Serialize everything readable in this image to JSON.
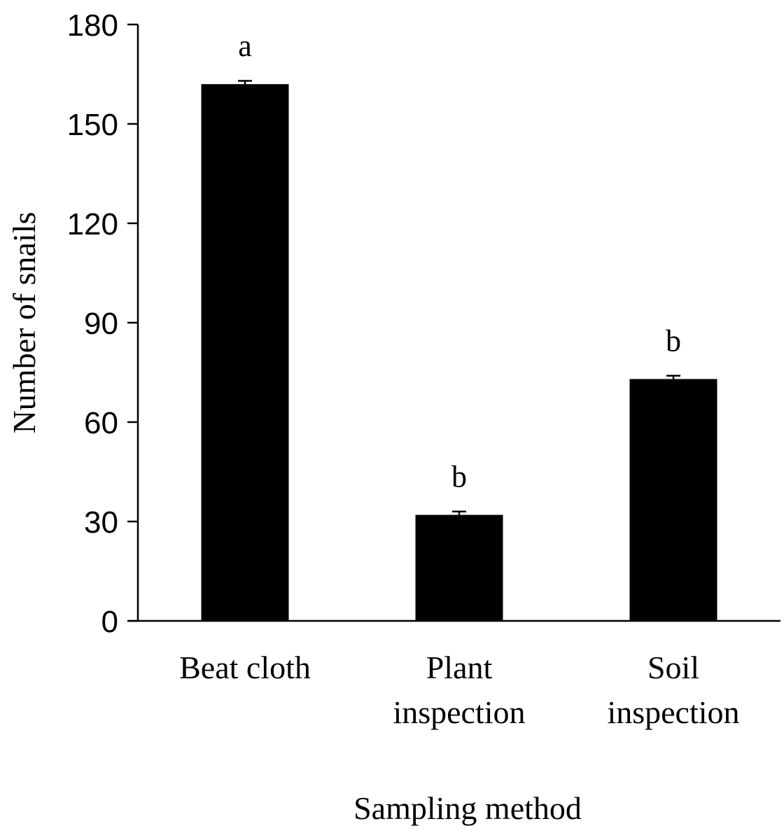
{
  "chart_data": {
    "type": "bar",
    "title": "",
    "xlabel": "Sampling method",
    "ylabel": "Number of snails",
    "ylim": [
      0,
      180
    ],
    "yticks": [
      0,
      30,
      60,
      90,
      120,
      150,
      180
    ],
    "categories": [
      [
        "Beat cloth"
      ],
      [
        "Plant",
        "inspection"
      ],
      [
        "Soil",
        "inspection"
      ]
    ],
    "values": [
      162,
      32,
      73
    ],
    "errors": [
      1,
      1,
      1
    ],
    "significance_letters": [
      "a",
      "b",
      "b"
    ],
    "grid": false,
    "legend": "none",
    "bar_color": "#000000"
  }
}
